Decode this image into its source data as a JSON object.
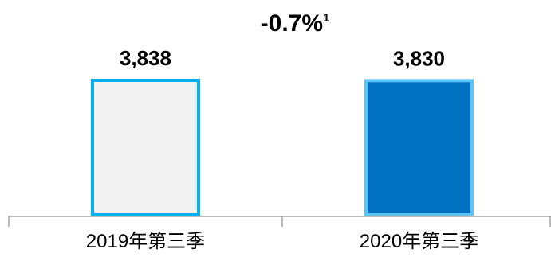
{
  "chart_data": {
    "type": "bar",
    "categories": [
      "2019年第三季",
      "2020年第三季"
    ],
    "values": [
      3838,
      3830
    ],
    "value_labels": [
      "3,838",
      "3,830"
    ],
    "title": "",
    "xlabel": "",
    "ylabel": "",
    "ylim": [
      0,
      3838
    ],
    "grid": false,
    "annotation": {
      "text": "-0.7%",
      "superscript": "1"
    },
    "colors": {
      "bar_fills": [
        "#f2f2f2",
        "#0070c0"
      ],
      "bar_strokes": [
        "#00b0f0",
        "#5bc3f5"
      ],
      "axis": "#a6a6a6",
      "text": "#000000"
    }
  }
}
